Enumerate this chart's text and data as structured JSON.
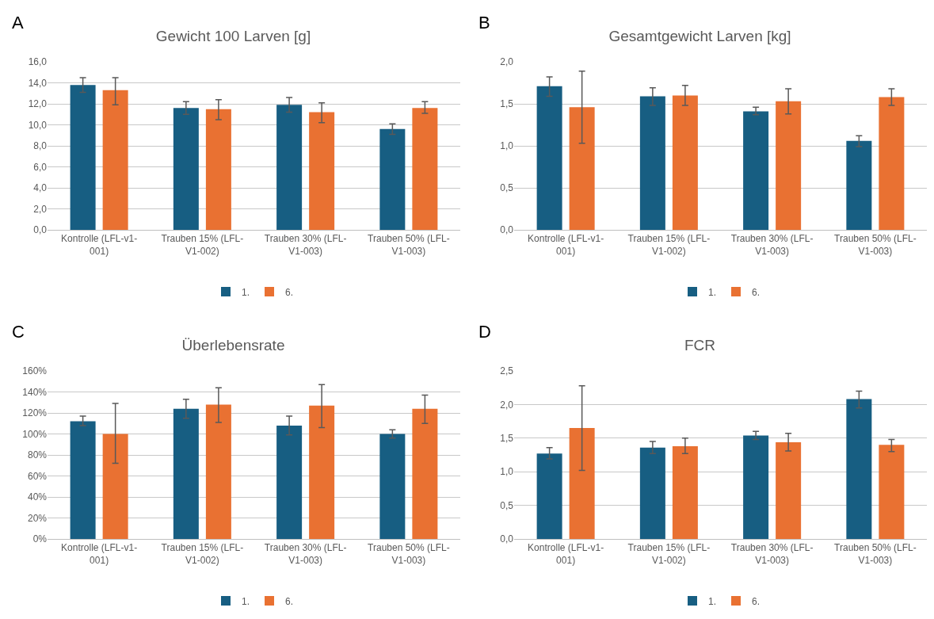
{
  "chart_data": [
    {
      "type": "bar",
      "title": "Gewicht 100 Larven [g]",
      "annotations": [
        "A"
      ],
      "categories": [
        "Kontrolle (LFL-v1-001)",
        "Trauben 15% (LFL-V1-002)",
        "Trauben 30% (LFL-V1-003)",
        "Trauben 50% (LFL-V1-003)"
      ],
      "series": [
        {
          "name": "1.",
          "color": "#175e82",
          "values": [
            13.8,
            11.6,
            11.9,
            9.6
          ],
          "errors": [
            [
              13.1,
              14.5
            ],
            [
              11.0,
              12.2
            ],
            [
              11.2,
              12.6
            ],
            [
              9.1,
              10.1
            ]
          ]
        },
        {
          "name": "6.",
          "color": "#e97132",
          "values": [
            13.3,
            11.5,
            11.2,
            11.6
          ],
          "errors": [
            [
              11.9,
              14.5
            ],
            [
              10.5,
              12.4
            ],
            [
              10.2,
              12.1
            ],
            [
              11.1,
              12.2
            ]
          ]
        }
      ],
      "ylim": [
        0,
        16
      ],
      "yticks": [
        {
          "value": 0,
          "label": "0,0"
        },
        {
          "value": 2,
          "label": "2,0"
        },
        {
          "value": 4,
          "label": "4,0"
        },
        {
          "value": 6,
          "label": "6,0"
        },
        {
          "value": 8,
          "label": "8,0"
        },
        {
          "value": 10,
          "label": "10,0"
        },
        {
          "value": 12,
          "label": "12,0"
        },
        {
          "value": 14,
          "label": "14,0"
        },
        {
          "value": 16,
          "label": "16,0"
        }
      ],
      "grid": "y",
      "legend": "bottom"
    },
    {
      "type": "bar",
      "title": "Gesamtgewicht Larven [kg]",
      "annotations": [
        "B"
      ],
      "categories": [
        "Kontrolle (LFL-v1-001)",
        "Trauben 15% (LFL-V1-002)",
        "Trauben 30% (LFL-V1-003)",
        "Trauben 50% (LFL-V1-003)"
      ],
      "series": [
        {
          "name": "1.",
          "color": "#175e82",
          "values": [
            1.71,
            1.59,
            1.41,
            1.06
          ],
          "errors": [
            [
              1.59,
              1.82
            ],
            [
              1.48,
              1.69
            ],
            [
              1.37,
              1.46
            ],
            [
              0.99,
              1.12
            ]
          ]
        },
        {
          "name": "6.",
          "color": "#e97132",
          "values": [
            1.46,
            1.6,
            1.53,
            1.58
          ],
          "errors": [
            [
              1.03,
              1.89
            ],
            [
              1.48,
              1.72
            ],
            [
              1.38,
              1.68
            ],
            [
              1.48,
              1.68
            ]
          ]
        }
      ],
      "ylim": [
        0,
        2
      ],
      "yticks": [
        {
          "value": 0,
          "label": "0,0"
        },
        {
          "value": 0.5,
          "label": "0,5"
        },
        {
          "value": 1,
          "label": "1,0"
        },
        {
          "value": 1.5,
          "label": "1,5"
        },
        {
          "value": 2,
          "label": "2,0"
        }
      ],
      "grid": "y",
      "legend": "bottom"
    },
    {
      "type": "bar",
      "title": "Überlebensrate",
      "annotations": [
        "C"
      ],
      "categories": [
        "Kontrolle (LFL-v1-001)",
        "Trauben 15% (LFL-V1-002)",
        "Trauben 30% (LFL-V1-003)",
        "Trauben 50% (LFL-V1-003)"
      ],
      "series": [
        {
          "name": "1.",
          "color": "#175e82",
          "values": [
            112,
            124,
            108,
            100
          ],
          "errors": [
            [
              108,
              117
            ],
            [
              115,
              133
            ],
            [
              99,
              117
            ],
            [
              96,
              104
            ]
          ]
        },
        {
          "name": "6.",
          "color": "#e97132",
          "values": [
            100,
            128,
            127,
            124
          ],
          "errors": [
            [
              72,
              129
            ],
            [
              111,
              144
            ],
            [
              106,
              147
            ],
            [
              110,
              137
            ]
          ]
        }
      ],
      "ylim": [
        0,
        160
      ],
      "yticks": [
        {
          "value": 0,
          "label": "0%"
        },
        {
          "value": 20,
          "label": "20%"
        },
        {
          "value": 40,
          "label": "40%"
        },
        {
          "value": 60,
          "label": "60%"
        },
        {
          "value": 80,
          "label": "80%"
        },
        {
          "value": 100,
          "label": "100%"
        },
        {
          "value": 120,
          "label": "120%"
        },
        {
          "value": 140,
          "label": "140%"
        },
        {
          "value": 160,
          "label": "160%"
        }
      ],
      "grid": "y",
      "legend": "bottom"
    },
    {
      "type": "bar",
      "title": "FCR",
      "annotations": [
        "D"
      ],
      "categories": [
        "Kontrolle (LFL-v1-001)",
        "Trauben 15% (LFL-V1-002)",
        "Trauben 30% (LFL-V1-003)",
        "Trauben 50% (LFL-V1-003)"
      ],
      "series": [
        {
          "name": "1.",
          "color": "#175e82",
          "values": [
            1.27,
            1.36,
            1.54,
            2.08
          ],
          "errors": [
            [
              1.19,
              1.36
            ],
            [
              1.27,
              1.45
            ],
            [
              1.48,
              1.6
            ],
            [
              1.95,
              2.2
            ]
          ]
        },
        {
          "name": "6.",
          "color": "#e97132",
          "values": [
            1.65,
            1.38,
            1.44,
            1.4
          ],
          "errors": [
            [
              1.02,
              2.28
            ],
            [
              1.27,
              1.5
            ],
            [
              1.31,
              1.57
            ],
            [
              1.3,
              1.48
            ]
          ]
        }
      ],
      "ylim": [
        0,
        2.5
      ],
      "yticks": [
        {
          "value": 0,
          "label": "0,0"
        },
        {
          "value": 0.5,
          "label": "0,5"
        },
        {
          "value": 1,
          "label": "1,0"
        },
        {
          "value": 1.5,
          "label": "1,5"
        },
        {
          "value": 2,
          "label": "2,0"
        },
        {
          "value": 2.5,
          "label": "2,5"
        }
      ],
      "grid": "y",
      "legend": "bottom"
    }
  ]
}
